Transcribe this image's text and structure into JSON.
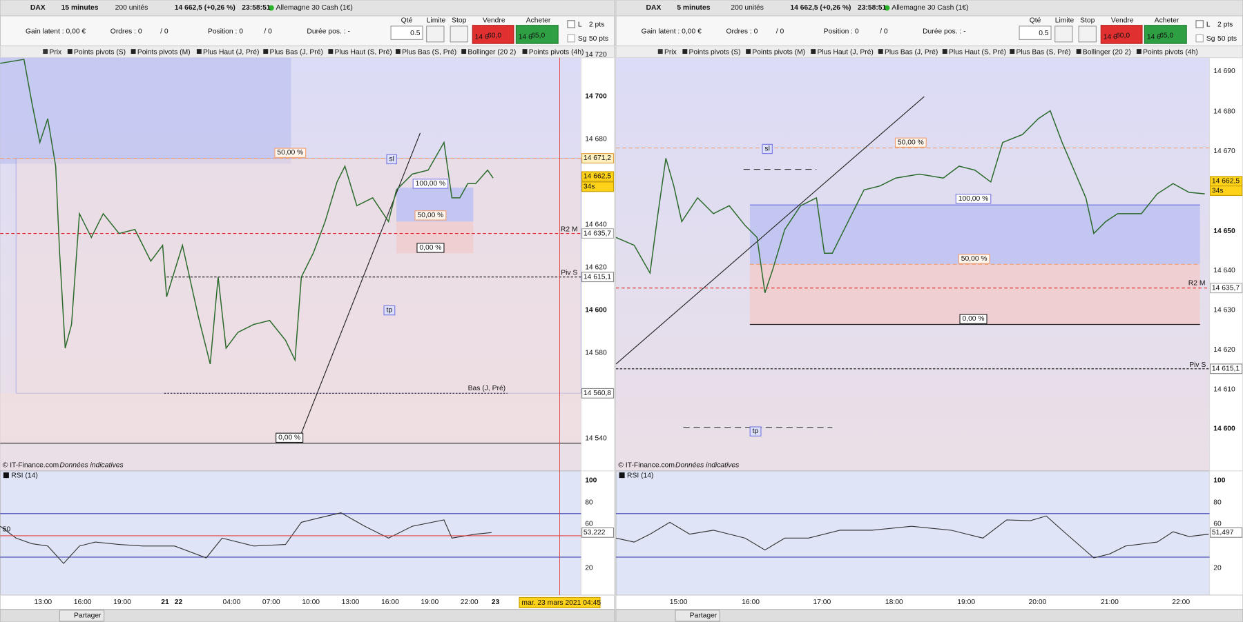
{
  "panels": [
    {
      "toolbar": {
        "symbol": "DAX",
        "period": "15 minutes",
        "quantity": "200 unités",
        "price": "14 662,5 (+0,26 %)",
        "time": "23:58:51",
        "instrument": "Allemagne 30 Cash (1€)"
      },
      "account": {
        "gain": "Gain latent : 0,00 €",
        "orders": "Ordres : 0",
        "orders_pending": "/ 0",
        "position": "Position : 0",
        "position_pending": "/ 0",
        "duration": "Durée pos. : -"
      },
      "ticket": {
        "qty_label": "Qté",
        "qty": "0.5",
        "limit": "Limite",
        "stop": "Stop",
        "sell_label": "Vendre",
        "sell_prefix": "14 6",
        "sell_price": "60,0",
        "buy_label": "Acheter",
        "buy_prefix": "14 6",
        "buy_price": "65,0",
        "l": "L",
        "sg": "Sg",
        "pts_small": "2 pts",
        "pts_large": "50 pts"
      },
      "indicators": [
        "Prix",
        "Points pivots (S)",
        "Points pivots (M)",
        "Plus Haut (J, Pré)",
        "Plus Bas (J, Pré)",
        "Plus Haut (S, Pré)",
        "Plus Bas (S, Pré)",
        "Bollinger (20 2)",
        "Points pivots (4h)"
      ],
      "price_axis": [
        "14 720",
        "14 700",
        "14 680",
        "14 640",
        "14 620",
        "14 600",
        "14 580",
        "14 540"
      ],
      "price_tags": [
        "14 671,2",
        "14 662,5",
        "34s",
        "14 635,7",
        "14 615,1",
        "14 560,8"
      ],
      "annotations": [
        "50,00 %",
        "sl",
        "100,00 %",
        "50,00 %",
        "0,00 %",
        "tp",
        "R2 M",
        "Piv S",
        "Bas (J, Pré)",
        "0,00 %"
      ],
      "copyright": "© IT-Finance.com",
      "disclaimer": "Données indicatives",
      "rsi": {
        "label": "RSI (14)",
        "axis": [
          "100",
          "80",
          "60",
          "20"
        ],
        "value": "53,222",
        "mid": "50"
      },
      "time_axis": [
        "13:00",
        "16:00",
        "19:00",
        "21",
        "22",
        "04:00",
        "07:00",
        "10:00",
        "13:00",
        "16:00",
        "19:00",
        "22:00",
        "23"
      ],
      "date_tag": "mar. 23 mars 2021 04:45",
      "share": "Partager"
    },
    {
      "toolbar": {
        "symbol": "DAX",
        "period": "5 minutes",
        "quantity": "200 unités",
        "price": "14 662,5 (+0,26 %)",
        "time": "23:58:51",
        "instrument": "Allemagne 30 Cash (1€)"
      },
      "account": {
        "gain": "Gain latent : 0,00 €",
        "orders": "Ordres : 0",
        "orders_pending": "/ 0",
        "position": "Position : 0",
        "position_pending": "/ 0",
        "duration": "Durée pos. : -"
      },
      "ticket": {
        "qty_label": "Qté",
        "qty": "0.5",
        "limit": "Limite",
        "stop": "Stop",
        "sell_label": "Vendre",
        "sell_prefix": "14 6",
        "sell_price": "60,0",
        "buy_label": "Acheter",
        "buy_prefix": "14 6",
        "buy_price": "65,0",
        "l": "L",
        "sg": "Sg",
        "pts_small": "2 pts",
        "pts_large": "50 pts"
      },
      "indicators": [
        "Prix",
        "Points pivots (S)",
        "Points pivots (M)",
        "Plus Haut (J, Pré)",
        "Plus Bas (J, Pré)",
        "Plus Haut (S, Pré)",
        "Plus Bas (S, Pré)",
        "Bollinger (20 2)",
        "Points pivots (4h)"
      ],
      "price_axis": [
        "14 690",
        "14 680",
        "14 670",
        "14 650",
        "14 640",
        "14 630",
        "14 620",
        "14 610",
        "14 600"
      ],
      "price_tags": [
        "14 662,5",
        "34s",
        "14 635,7",
        "14 615,1"
      ],
      "annotations": [
        "sl",
        "50,00 %",
        "100,00 %",
        "50,00 %",
        "0,00 %",
        "tp",
        "R2 M",
        "Piv S"
      ],
      "copyright": "© IT-Finance.com",
      "disclaimer": "Données indicatives",
      "rsi": {
        "label": "RSI (14)",
        "axis": [
          "100",
          "80",
          "60",
          "20"
        ],
        "value": "51,497"
      },
      "time_axis": [
        "15:00",
        "16:00",
        "17:00",
        "18:00",
        "19:00",
        "20:00",
        "21:00",
        "22:00"
      ],
      "share": "Partager"
    }
  ]
}
